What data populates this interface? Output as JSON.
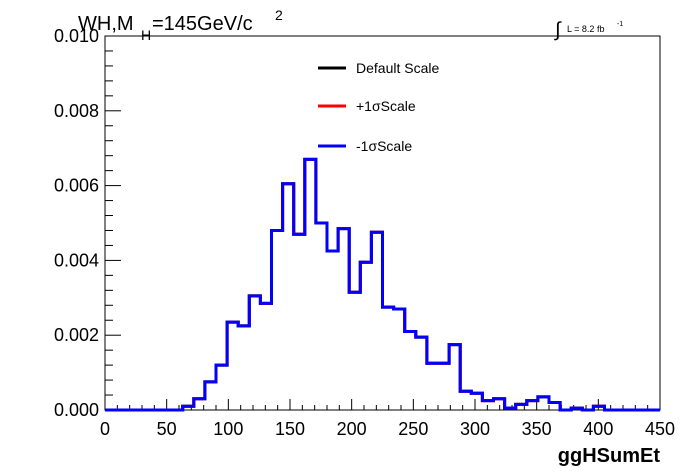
{
  "chart_data": {
    "type": "line",
    "title_main": "WH,M",
    "title_sub": "H",
    "title_rest": "=145GeV/c",
    "title_sup": "2",
    "lumi_int": "∫",
    "lumi_text": "L = 8.2 fb",
    "lumi_sup": "-1",
    "xlabel": "ggHSumEt",
    "ylabel": "",
    "xlim": [
      0,
      450
    ],
    "ylim": [
      0,
      0.01
    ],
    "xticks": [
      "0",
      "50",
      "100",
      "150",
      "200",
      "250",
      "300",
      "350",
      "400",
      "450"
    ],
    "yticks": [
      "0.000",
      "0.002",
      "0.004",
      "0.006",
      "0.008",
      "0.010"
    ],
    "legend_position": "top-center",
    "bin_width": 9,
    "bin_edges_start": 0,
    "series": [
      {
        "name": "Default Scale",
        "color": "#000000",
        "values": [
          0,
          0,
          0,
          0,
          0,
          0,
          0,
          0.0001,
          0.0003,
          0.00075,
          0.0012,
          0.00235,
          0.00225,
          0.00305,
          0.00285,
          0.0048,
          0.00605,
          0.0047,
          0.0067,
          0.005,
          0.00425,
          0.00485,
          0.00315,
          0.00395,
          0.00475,
          0.00275,
          0.0027,
          0.0021,
          0.00195,
          0.00125,
          0.00125,
          0.00175,
          0.0005,
          0.00045,
          0.00025,
          0.0003,
          5e-05,
          0.00015,
          0.00025,
          0.00035,
          0.0002,
          0,
          5e-05,
          0,
          0.0001,
          0,
          0,
          0,
          0,
          0
        ]
      },
      {
        "name": "+1σScale",
        "color": "#ff0000",
        "values": [
          0,
          0,
          0,
          0,
          0,
          0,
          0,
          0.0001,
          0.0003,
          0.00075,
          0.0012,
          0.00235,
          0.00225,
          0.00305,
          0.00285,
          0.0048,
          0.00605,
          0.0047,
          0.0067,
          0.005,
          0.00425,
          0.00485,
          0.00315,
          0.00395,
          0.00475,
          0.00275,
          0.0027,
          0.0021,
          0.00195,
          0.00125,
          0.00125,
          0.00175,
          0.0005,
          0.00045,
          0.00025,
          0.0003,
          5e-05,
          0.00015,
          0.00025,
          0.00035,
          0.0002,
          0,
          5e-05,
          0,
          0.0001,
          0,
          0,
          0,
          0,
          0
        ]
      },
      {
        "name": "-1σScale",
        "color": "#0000ff",
        "values": [
          0,
          0,
          0,
          0,
          0,
          0,
          0,
          0.0001,
          0.0003,
          0.00075,
          0.0012,
          0.00235,
          0.00225,
          0.00305,
          0.00285,
          0.0048,
          0.00605,
          0.0047,
          0.0067,
          0.005,
          0.00425,
          0.00485,
          0.00315,
          0.00395,
          0.00475,
          0.00275,
          0.0027,
          0.0021,
          0.00195,
          0.00125,
          0.00125,
          0.00175,
          0.0005,
          0.00045,
          0.00025,
          0.0003,
          5e-05,
          0.00015,
          0.00025,
          0.00035,
          0.0002,
          0,
          5e-05,
          0,
          0.0001,
          0,
          0,
          0,
          0,
          0
        ]
      }
    ]
  }
}
